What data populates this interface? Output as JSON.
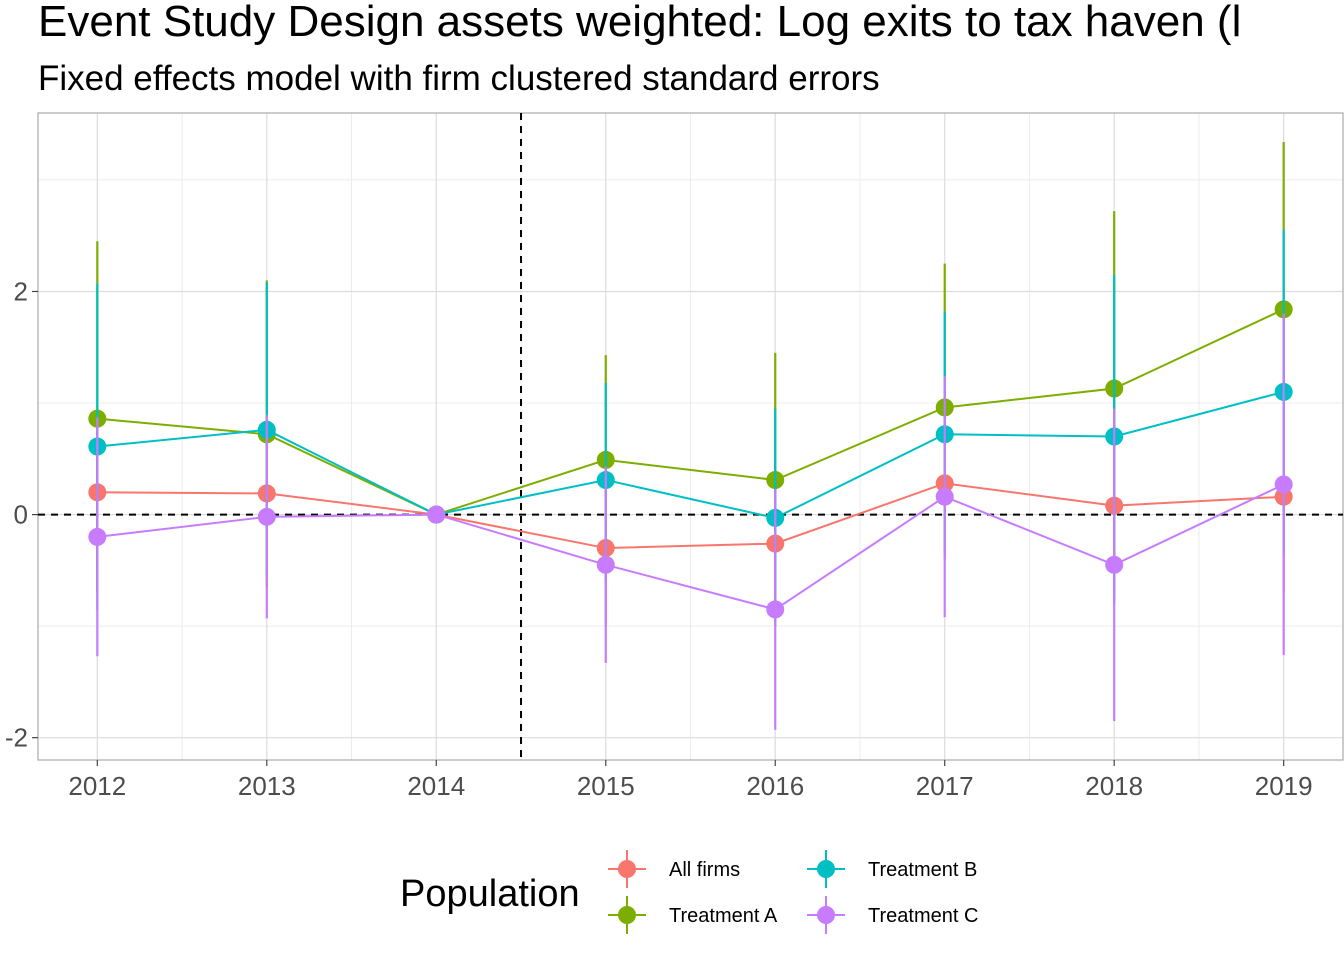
{
  "chart_data": {
    "type": "line",
    "title": "Event Study Design assets weighted: Log exits to tax haven (l",
    "subtitle": "Fixed effects model with firm clustered standard errors",
    "xlabel": "",
    "ylabel": "",
    "x": [
      2012,
      2013,
      2014,
      2015,
      2016,
      2017,
      2018,
      2019
    ],
    "x_tick_labels": [
      "2012",
      "2013",
      "2014",
      "2015",
      "2016",
      "2017",
      "2018",
      "2019"
    ],
    "xlim": [
      2011.65,
      2019.35
    ],
    "ylim": [
      -2.2,
      3.6
    ],
    "y_ticks": [
      -2,
      0,
      2
    ],
    "y_tick_labels": [
      "-2",
      "0",
      "2"
    ],
    "grid": true,
    "reference_lines": {
      "vertical_x": 2014.5,
      "horizontal_y": 0,
      "style": "dashed"
    },
    "legend": {
      "title": "Population",
      "position": "bottom",
      "entries": [
        "All firms",
        "Treatment A",
        "Treatment B",
        "Treatment C"
      ]
    },
    "series": [
      {
        "name": "All firms",
        "color": "#F8766D",
        "values": [
          0.2,
          0.19,
          0.0,
          -0.3,
          -0.26,
          0.28,
          0.08,
          0.16
        ],
        "lower": [
          -0.5,
          -0.5,
          0.0,
          -1.0,
          -0.95,
          -0.4,
          -0.8,
          -0.7
        ],
        "upper": [
          0.9,
          0.88,
          0.0,
          0.4,
          0.45,
          0.95,
          0.95,
          1.0
        ]
      },
      {
        "name": "Treatment A",
        "color": "#7CAE00",
        "values": [
          0.86,
          0.72,
          0.0,
          0.49,
          0.31,
          0.96,
          1.13,
          1.84
        ],
        "lower": [
          -0.7,
          -0.65,
          0.0,
          -0.45,
          -0.8,
          -0.3,
          -0.45,
          0.35
        ],
        "upper": [
          2.45,
          2.1,
          0.0,
          1.43,
          1.45,
          2.25,
          2.72,
          3.34
        ]
      },
      {
        "name": "Treatment B",
        "color": "#00BFC4",
        "values": [
          0.61,
          0.76,
          0.0,
          0.31,
          -0.03,
          0.72,
          0.7,
          1.1
        ],
        "lower": [
          -0.85,
          -0.55,
          0.0,
          -0.6,
          -1.0,
          -0.35,
          -0.75,
          -0.35
        ],
        "upper": [
          2.07,
          2.08,
          0.0,
          1.18,
          0.95,
          1.82,
          2.15,
          2.55
        ]
      },
      {
        "name": "Treatment C",
        "color": "#C77CFF",
        "values": [
          -0.2,
          -0.02,
          0.0,
          -0.45,
          -0.85,
          0.16,
          -0.45,
          0.27
        ],
        "lower": [
          -1.27,
          -0.93,
          0.0,
          -1.33,
          -1.93,
          -0.92,
          -1.85,
          -1.26
        ],
        "upper": [
          0.87,
          0.89,
          0.0,
          0.43,
          0.23,
          1.24,
          0.95,
          1.8
        ]
      }
    ]
  }
}
